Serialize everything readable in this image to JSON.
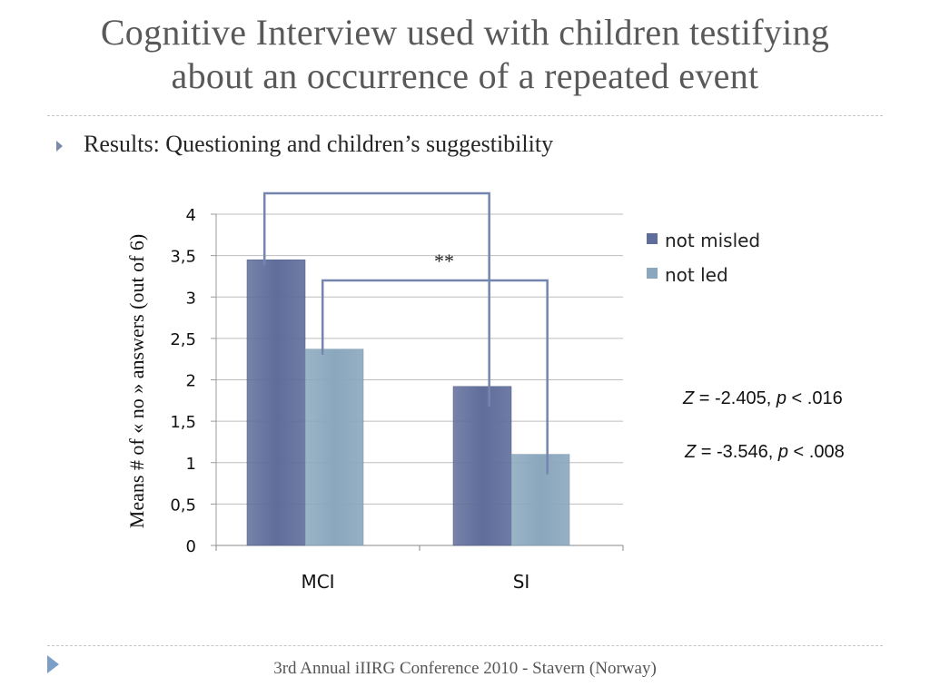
{
  "slide": {
    "title_line1": "Cognitive Interview used with children testifying",
    "title_line2": "about an occurrence of a repeated event",
    "bullet": "Results: Questioning and children’s suggestibility",
    "footer": "3rd Annual iIIRG Conference 2010 - Stavern (Norway)"
  },
  "stats": [
    {
      "z_label": "Z",
      "z_value": " = -2.405, ",
      "p_label": "p",
      "p_value": " < .016"
    },
    {
      "z_label": "Z",
      "z_value": " = -3.546, ",
      "p_label": "p",
      "p_value": " < .008"
    }
  ],
  "colors": {
    "not_misled": "#5f6d9a",
    "not_led": "#8aa7bd",
    "bracket": "#7486ad",
    "grid": "#bdbdbd"
  },
  "chart_data": {
    "type": "bar",
    "categories": [
      "MCI",
      "SI"
    ],
    "series": [
      {
        "name": "not misled",
        "values": [
          3.45,
          1.92
        ]
      },
      {
        "name": "not led",
        "values": [
          2.37,
          1.1
        ]
      }
    ],
    "ylabel": "Means #  of « no » answers (out of 6)",
    "ylim": [
      0,
      4
    ],
    "yticks": [
      "0",
      "0,5",
      "1",
      "1,5",
      "2",
      "2,5",
      "3",
      "3,5",
      "4"
    ],
    "ytick_values": [
      0,
      0.5,
      1,
      1.5,
      2,
      2.5,
      3,
      3.5,
      4
    ],
    "grid": true,
    "legend_position": "right",
    "annotation": "**"
  }
}
